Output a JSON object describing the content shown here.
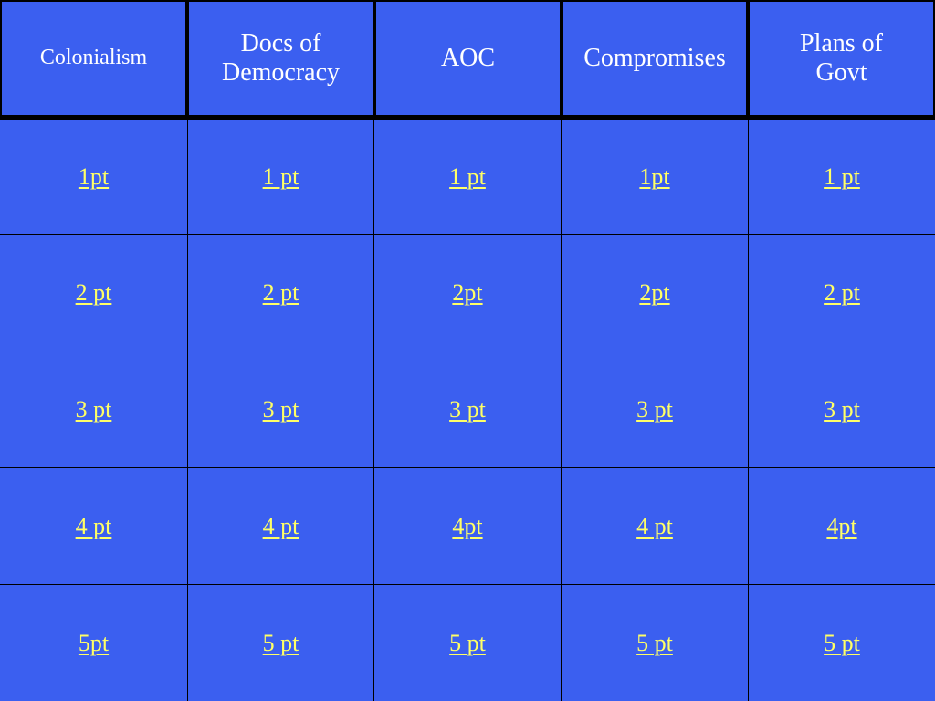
{
  "colors": {
    "background": "#3b5ff0",
    "grid_lines": "#000000",
    "header_text": "#ffffff",
    "link_text": "#ffff66"
  },
  "categories": [
    {
      "label": "Colonialism"
    },
    {
      "label": "Docs of Democracy"
    },
    {
      "label": "AOC"
    },
    {
      "label": "Compromises"
    },
    {
      "label": "Plans of Govt"
    }
  ],
  "rows": [
    [
      "1pt",
      "1 pt",
      "1 pt",
      "1pt",
      "1 pt"
    ],
    [
      "2 pt",
      "2 pt",
      "2pt",
      "2pt",
      "2 pt"
    ],
    [
      "3 pt",
      "3 pt",
      "3 pt",
      "3 pt",
      "3 pt"
    ],
    [
      "4 pt",
      "4 pt",
      "4pt",
      "4 pt",
      "4pt"
    ],
    [
      "5pt",
      "5 pt",
      "5 pt",
      "5 pt",
      "5 pt"
    ]
  ]
}
